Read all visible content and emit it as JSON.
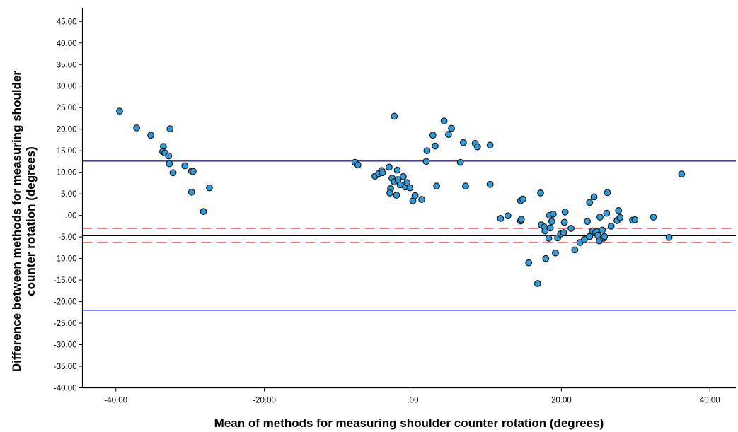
{
  "chart_data": {
    "type": "scatter",
    "title": "",
    "xlabel": "Mean of methods for measuring shoulder counter rotation (degrees)",
    "ylabel_lines": [
      "Difference between methods for measuring shoulder",
      "counter rotation (degrees)"
    ],
    "xlim": [
      -44.5,
      43.5
    ],
    "ylim": [
      -40,
      48
    ],
    "x_ticks": [
      {
        "value": -40,
        "label": "-40.00"
      },
      {
        "value": -20,
        "label": "-20.00"
      },
      {
        "value": 0,
        "label": ".00"
      },
      {
        "value": 20,
        "label": "20.00"
      },
      {
        "value": 40,
        "label": "40.00"
      }
    ],
    "y_ticks": [
      {
        "value": 45,
        "label": "45.00"
      },
      {
        "value": 40,
        "label": "40.00"
      },
      {
        "value": 35,
        "label": "35.00"
      },
      {
        "value": 30,
        "label": "30.00"
      },
      {
        "value": 25,
        "label": "25.00"
      },
      {
        "value": 20,
        "label": "20.00"
      },
      {
        "value": 15,
        "label": "15.00"
      },
      {
        "value": 10,
        "label": "10.00"
      },
      {
        "value": 5,
        "label": "5.00"
      },
      {
        "value": 0,
        "label": ".00"
      },
      {
        "value": -5,
        "label": "-5.00"
      },
      {
        "value": -10,
        "label": "-10.00"
      },
      {
        "value": -15,
        "label": "-15.00"
      },
      {
        "value": -20,
        "label": "-20.00"
      },
      {
        "value": -25,
        "label": "-25.00"
      },
      {
        "value": -30,
        "label": "-30.00"
      },
      {
        "value": -35,
        "label": "-35.00"
      },
      {
        "value": -40,
        "label": "-40.00"
      }
    ],
    "reference_lines": [
      {
        "y": 12.6,
        "color": "#1f1fbf",
        "style": "solid"
      },
      {
        "y": -22.0,
        "color": "#1f1fbf",
        "style": "solid"
      },
      {
        "y": -4.7,
        "color": "#000000",
        "style": "solid"
      },
      {
        "y": -3.0,
        "color": "#e5524f",
        "style": "dashed"
      },
      {
        "y": -6.3,
        "color": "#e5524f",
        "style": "dashed"
      }
    ],
    "marker_color": "#2f9bdc",
    "points": [
      {
        "x": -39.5,
        "y": 24.2
      },
      {
        "x": -37.2,
        "y": 20.3
      },
      {
        "x": -35.3,
        "y": 18.6
      },
      {
        "x": -33.6,
        "y": 16.0
      },
      {
        "x": -33.7,
        "y": 14.8
      },
      {
        "x": -33.4,
        "y": 14.5
      },
      {
        "x": -32.9,
        "y": 13.8
      },
      {
        "x": -32.7,
        "y": 20.1
      },
      {
        "x": -32.8,
        "y": 12.0
      },
      {
        "x": -32.3,
        "y": 9.9
      },
      {
        "x": -30.7,
        "y": 11.5
      },
      {
        "x": -29.8,
        "y": 10.3
      },
      {
        "x": -29.6,
        "y": 10.2
      },
      {
        "x": -29.8,
        "y": 5.4
      },
      {
        "x": -28.2,
        "y": 0.9
      },
      {
        "x": -27.4,
        "y": 6.4
      },
      {
        "x": -7.8,
        "y": 12.3
      },
      {
        "x": -7.4,
        "y": 11.7
      },
      {
        "x": -5.1,
        "y": 9.1
      },
      {
        "x": -4.6,
        "y": 9.7
      },
      {
        "x": -4.2,
        "y": 10.4
      },
      {
        "x": -4.1,
        "y": 9.9
      },
      {
        "x": -3.2,
        "y": 11.2
      },
      {
        "x": -2.8,
        "y": 8.6
      },
      {
        "x": -3.0,
        "y": 6.2
      },
      {
        "x": -3.1,
        "y": 5.2
      },
      {
        "x": -2.5,
        "y": 23.0
      },
      {
        "x": -2.5,
        "y": 7.8
      },
      {
        "x": -2.2,
        "y": 4.7
      },
      {
        "x": -2.0,
        "y": 8.3
      },
      {
        "x": -1.7,
        "y": 7.1
      },
      {
        "x": -2.1,
        "y": 10.5
      },
      {
        "x": -1.3,
        "y": 9.0
      },
      {
        "x": -1.0,
        "y": 6.6
      },
      {
        "x": -0.8,
        "y": 7.6
      },
      {
        "x": -0.4,
        "y": 6.4
      },
      {
        "x": 0.0,
        "y": 3.4
      },
      {
        "x": 0.3,
        "y": 4.6
      },
      {
        "x": 1.2,
        "y": 3.7
      },
      {
        "x": 1.8,
        "y": 12.5
      },
      {
        "x": 1.9,
        "y": 15.0
      },
      {
        "x": 2.7,
        "y": 18.6
      },
      {
        "x": 3.0,
        "y": 16.1
      },
      {
        "x": 3.2,
        "y": 6.8
      },
      {
        "x": 4.2,
        "y": 21.9
      },
      {
        "x": 4.8,
        "y": 18.8
      },
      {
        "x": 5.2,
        "y": 20.2
      },
      {
        "x": 6.4,
        "y": 12.3
      },
      {
        "x": 6.8,
        "y": 16.9
      },
      {
        "x": 7.1,
        "y": 6.8
      },
      {
        "x": 8.4,
        "y": 16.7
      },
      {
        "x": 8.7,
        "y": 15.9
      },
      {
        "x": 10.4,
        "y": 16.3
      },
      {
        "x": 10.4,
        "y": 7.2
      },
      {
        "x": 11.8,
        "y": -0.7
      },
      {
        "x": 12.8,
        "y": -0.1
      },
      {
        "x": 14.5,
        "y": -1.3
      },
      {
        "x": 14.5,
        "y": 3.4
      },
      {
        "x": 14.8,
        "y": 3.8
      },
      {
        "x": 14.6,
        "y": -0.9
      },
      {
        "x": 15.6,
        "y": -11.0
      },
      {
        "x": 16.8,
        "y": -15.8
      },
      {
        "x": 17.3,
        "y": -2.2
      },
      {
        "x": 17.2,
        "y": 5.2
      },
      {
        "x": 17.7,
        "y": -2.7
      },
      {
        "x": 17.8,
        "y": -3.6
      },
      {
        "x": 17.9,
        "y": -10.0
      },
      {
        "x": 18.3,
        "y": -5.3
      },
      {
        "x": 18.4,
        "y": 0.0
      },
      {
        "x": 18.5,
        "y": -2.9
      },
      {
        "x": 18.7,
        "y": -1.4
      },
      {
        "x": 18.9,
        "y": 0.3
      },
      {
        "x": 19.2,
        "y": -8.7
      },
      {
        "x": 19.5,
        "y": -5.2
      },
      {
        "x": 19.9,
        "y": -4.3
      },
      {
        "x": 20.3,
        "y": -4.0
      },
      {
        "x": 20.4,
        "y": -1.6
      },
      {
        "x": 20.5,
        "y": 0.8
      },
      {
        "x": 21.3,
        "y": -3.0
      },
      {
        "x": 21.8,
        "y": -8.0
      },
      {
        "x": 22.5,
        "y": -6.3
      },
      {
        "x": 23.1,
        "y": -5.6
      },
      {
        "x": 23.5,
        "y": -1.4
      },
      {
        "x": 23.8,
        "y": -4.9
      },
      {
        "x": 23.8,
        "y": 3.0
      },
      {
        "x": 24.2,
        "y": -3.6
      },
      {
        "x": 24.4,
        "y": 4.3
      },
      {
        "x": 24.6,
        "y": -4.0
      },
      {
        "x": 24.8,
        "y": -3.8
      },
      {
        "x": 24.9,
        "y": -4.6
      },
      {
        "x": 25.1,
        "y": -5.9
      },
      {
        "x": 25.2,
        "y": -0.4
      },
      {
        "x": 25.5,
        "y": -3.4
      },
      {
        "x": 25.7,
        "y": -5.3
      },
      {
        "x": 25.8,
        "y": -4.9
      },
      {
        "x": 26.1,
        "y": 0.5
      },
      {
        "x": 26.2,
        "y": 5.3
      },
      {
        "x": 26.7,
        "y": -2.5
      },
      {
        "x": 27.5,
        "y": -1.2
      },
      {
        "x": 27.7,
        "y": 1.1
      },
      {
        "x": 27.9,
        "y": -0.5
      },
      {
        "x": 29.6,
        "y": -1.1
      },
      {
        "x": 29.9,
        "y": -1.0
      },
      {
        "x": 32.4,
        "y": -0.4
      },
      {
        "x": 34.5,
        "y": -5.1
      },
      {
        "x": 36.2,
        "y": 9.6
      }
    ]
  }
}
